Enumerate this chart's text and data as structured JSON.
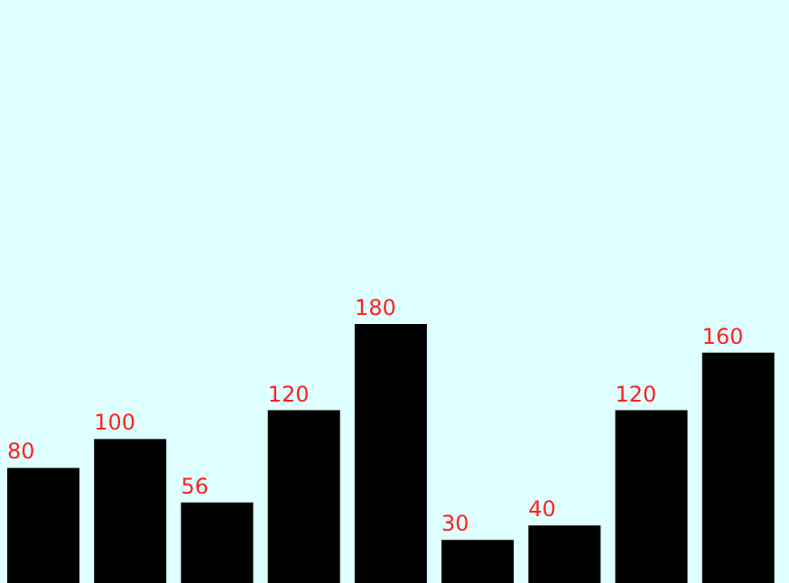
{
  "chart_data": {
    "type": "bar",
    "categories": [
      null,
      null,
      null,
      null,
      null,
      null,
      null,
      null,
      null
    ],
    "values": [
      80,
      100,
      56,
      120,
      180,
      30,
      40,
      120,
      160
    ],
    "color": "#000000",
    "data_labels": true,
    "grid": false
  }
}
